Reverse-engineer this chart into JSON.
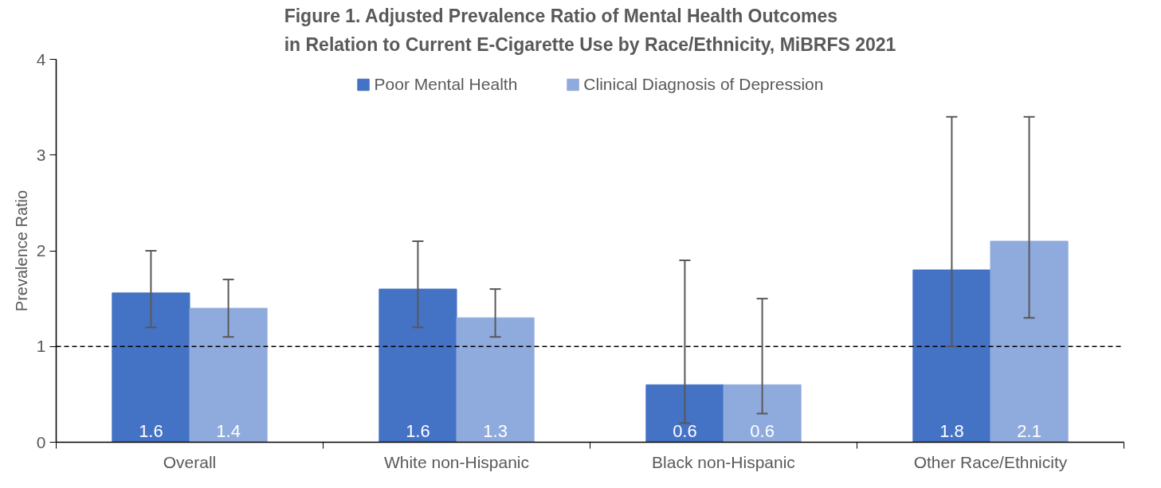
{
  "chart_data": {
    "type": "bar",
    "title": "Figure 1. Adjusted Prevalence Ratio of Mental Health Outcomes\nin Relation to Current E-Cigarette Use by Race/Ethnicity, MiBRFS 2021",
    "ylabel": "Prevalence Ratio",
    "categories": [
      "Overall",
      "White non-Hispanic",
      "Black non-Hispanic",
      "Other Race/Ethnicity"
    ],
    "series": [
      {
        "name": "Poor Mental Health",
        "color": "#4472c4",
        "values": [
          1.56,
          1.6,
          0.6,
          1.8
        ],
        "value_labels": [
          "1.6",
          "1.6",
          "0.6",
          "1.8"
        ],
        "errors": [
          [
            1.2,
            2.0
          ],
          [
            1.2,
            2.1
          ],
          [
            0.2,
            1.9
          ],
          [
            1.0,
            3.4
          ]
        ]
      },
      {
        "name": "Clinical Diagnosis of Depression",
        "color": "#8faadc",
        "values": [
          1.4,
          1.3,
          0.6,
          2.1
        ],
        "value_labels": [
          "1.4",
          "1.3",
          "0.6",
          "2.1"
        ],
        "errors": [
          [
            1.1,
            1.7
          ],
          [
            1.1,
            1.6
          ],
          [
            0.3,
            1.5
          ],
          [
            1.3,
            3.4
          ]
        ]
      }
    ],
    "ylim": [
      0,
      4
    ],
    "yticks": [
      0,
      1,
      2,
      3,
      4
    ],
    "ref_lines": [
      {
        "axis": "y",
        "value": 1,
        "color": "#000000",
        "line_style": "dashed"
      }
    ],
    "grid": false,
    "legend": "top"
  }
}
